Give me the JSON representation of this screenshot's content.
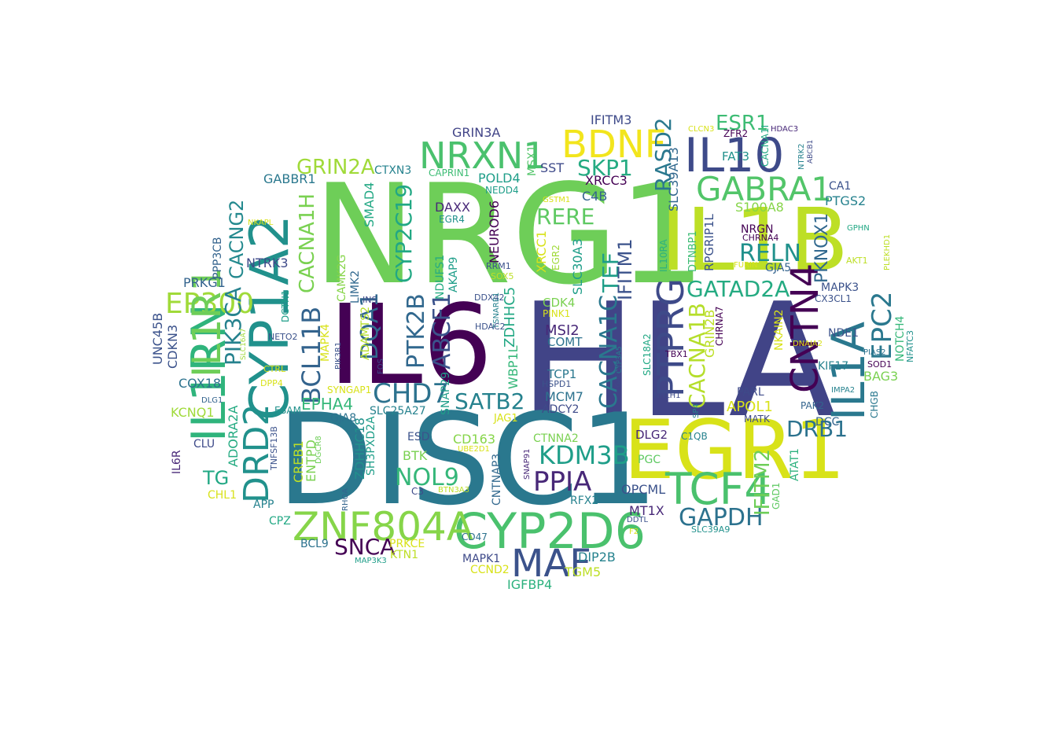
{
  "words": [
    {
      "text": "NRG1",
      "color": "#6ECE58"
    },
    {
      "text": "HLA",
      "color": "#414487"
    },
    {
      "text": "DISC1",
      "color": "#2A788E"
    },
    {
      "text": "IL6",
      "color": "#440154"
    },
    {
      "text": "IL1B",
      "color": "#BDDF26"
    },
    {
      "text": "EGR1",
      "color": "#D8E219"
    },
    {
      "text": "CYP1A2",
      "color": "#21918C"
    },
    {
      "text": "CYP2D6",
      "color": "#4AC16D"
    },
    {
      "text": "ZNF804A",
      "color": "#86D549"
    },
    {
      "text": "IL1RN",
      "color": "#2FB47C"
    },
    {
      "text": "MAF",
      "color": "#3B528B"
    },
    {
      "text": "TCF4",
      "color": "#4AC16D"
    },
    {
      "text": "IL10",
      "color": "#3E4A89"
    },
    {
      "text": "NRXN1",
      "color": "#4AC16D"
    },
    {
      "text": "BDNF",
      "color": "#F2E51D"
    },
    {
      "text": "GABRA1",
      "color": "#52C569"
    },
    {
      "text": "IL1A",
      "color": "#2A788E"
    },
    {
      "text": "CNTN4",
      "color": "#440154"
    },
    {
      "text": "PTPRG",
      "color": "#3E4A89"
    },
    {
      "text": "DRD2",
      "color": "#21918C"
    },
    {
      "text": "EP300",
      "color": "#A0DA39"
    },
    {
      "text": "CHD7",
      "color": "#2C728E"
    },
    {
      "text": "PPIA",
      "color": "#482878"
    },
    {
      "text": "KDM3B",
      "color": "#1F9E89"
    },
    {
      "text": "GAPDH",
      "color": "#2C728E"
    },
    {
      "text": "NOL9",
      "color": "#35B779"
    },
    {
      "text": "BCL11B",
      "color": "#33638D"
    },
    {
      "text": "CACNA1H",
      "color": "#7AD151"
    },
    {
      "text": "CYP2C19",
      "color": "#22A884"
    },
    {
      "text": "ABCF1",
      "color": "#3B528B"
    },
    {
      "text": "SATB2",
      "color": "#26828E"
    },
    {
      "text": "RELN",
      "color": "#21918C"
    },
    {
      "text": "GATAD2A",
      "color": "#25AB82"
    },
    {
      "text": "CACNA1C",
      "color": "#2A788E"
    },
    {
      "text": "EPC2",
      "color": "#2A788E"
    },
    {
      "text": "DQA1",
      "color": "#31688E"
    },
    {
      "text": "PTK2B",
      "color": "#31688E"
    },
    {
      "text": "TEF",
      "color": "#1F9E89"
    },
    {
      "text": "RERE",
      "color": "#5EC962"
    },
    {
      "text": "SKP1",
      "color": "#25AB82"
    },
    {
      "text": "RASD2",
      "color": "#2A788E"
    },
    {
      "text": "ESR1",
      "color": "#3DBC74"
    },
    {
      "text": "GRIN2A",
      "color": "#A0DA39"
    },
    {
      "text": "CACNG2",
      "color": "#23898E"
    },
    {
      "text": "PIK3CA",
      "color": "#26828E"
    },
    {
      "text": "IFITM2",
      "color": "#6ECE58"
    },
    {
      "text": "DRB1",
      "color": "#2C728E"
    },
    {
      "text": "SNCA",
      "color": "#440154"
    },
    {
      "text": "IGFBP4",
      "color": "#2CB17E"
    },
    {
      "text": "EPHA4",
      "color": "#35B779"
    },
    {
      "text": "TG",
      "color": "#22A884"
    },
    {
      "text": "IL1R1",
      "color": "#6ECE58"
    },
    {
      "text": "CACNA1B",
      "color": "#B5DE2B"
    },
    {
      "text": "PKNOX1",
      "color": "#31688E"
    },
    {
      "text": "IFITM3",
      "color": "#3E4A89"
    },
    {
      "text": "GRIN3A",
      "color": "#414487"
    },
    {
      "text": "POLD4",
      "color": "#1F9E89"
    },
    {
      "text": "SST",
      "color": "#3E4A89"
    },
    {
      "text": "XRCC3",
      "color": "#440154"
    },
    {
      "text": "C4B",
      "color": "#33638D"
    },
    {
      "text": "SMAD4",
      "color": "#22A884"
    },
    {
      "text": "DAXX",
      "color": "#482878"
    },
    {
      "text": "NEUROD6",
      "color": "#440154"
    },
    {
      "text": "NDUFS1",
      "color": "#25AB82"
    },
    {
      "text": "AKAP9",
      "color": "#1F9E89"
    },
    {
      "text": "CAMK2G",
      "color": "#86D549"
    },
    {
      "text": "LIMK2",
      "color": "#31688E"
    },
    {
      "text": "NTRK3",
      "color": "#3E4A89"
    },
    {
      "text": "PRKG1",
      "color": "#33638D"
    },
    {
      "text": "GABBR1",
      "color": "#2A788E"
    },
    {
      "text": "CTXN3",
      "color": "#26828E"
    },
    {
      "text": "CAPRIN1",
      "color": "#3DBC74"
    },
    {
      "text": "NEDD4",
      "color": "#1F9E89"
    },
    {
      "text": "MSX1",
      "color": "#52C569"
    },
    {
      "text": "GSTM1",
      "color": "#D8E219"
    },
    {
      "text": "EGR4",
      "color": "#21918C"
    },
    {
      "text": "XRCC1",
      "color": "#D8E219"
    },
    {
      "text": "EGR2",
      "color": "#A0DA39"
    },
    {
      "text": "SOX5",
      "color": "#BDDF26"
    },
    {
      "text": "RRM1",
      "color": "#3B528B"
    },
    {
      "text": "DDX42",
      "color": "#3B528B"
    },
    {
      "text": "CDK4",
      "color": "#7AD151"
    },
    {
      "text": "PINK1",
      "color": "#D8E219"
    },
    {
      "text": "MSI2",
      "color": "#482878"
    },
    {
      "text": "COMT",
      "color": "#2C728E"
    },
    {
      "text": "TCP1",
      "color": "#2A788E"
    },
    {
      "text": "HSPD1",
      "color": "#3B528B"
    },
    {
      "text": "MCM7",
      "color": "#2C728E"
    },
    {
      "text": "ADCY2",
      "color": "#3E4A89"
    },
    {
      "text": "IFITM1",
      "color": "#3B528B"
    },
    {
      "text": "SLC30A3",
      "color": "#1F9E89"
    },
    {
      "text": "SLC39A13",
      "color": "#31688E"
    },
    {
      "text": "ZDHHC5",
      "color": "#22A884"
    },
    {
      "text": "WBP1L",
      "color": "#35B779"
    },
    {
      "text": "TSNARE1",
      "color": "#26828E"
    },
    {
      "text": "HDAC2",
      "color": "#3B528B"
    },
    {
      "text": "SNAP29",
      "color": "#1F9E89"
    },
    {
      "text": "SLC25A27",
      "color": "#26828E"
    },
    {
      "text": "GJA8",
      "color": "#2C728E"
    },
    {
      "text": "ADAMTS2",
      "color": "#B5DE2B"
    },
    {
      "text": "SYNGAP1",
      "color": "#D8E219"
    },
    {
      "text": "MAPK4",
      "color": "#D8E219"
    },
    {
      "text": "PIK3R1",
      "color": "#3B528B"
    },
    {
      "text": "INS",
      "color": "#3E4A89"
    },
    {
      "text": "FOS",
      "color": "#3E4A89"
    },
    {
      "text": "ESAM",
      "color": "#21918C"
    },
    {
      "text": "DLG1",
      "color": "#33638D"
    },
    {
      "text": "KCNQ1",
      "color": "#A0DA39"
    },
    {
      "text": "COX18",
      "color": "#2C728E"
    },
    {
      "text": "CDKN3",
      "color": "#3B528B"
    },
    {
      "text": "UNC45B",
      "color": "#3B528B"
    },
    {
      "text": "ADORA2A",
      "color": "#25AB82"
    },
    {
      "text": "DPP4",
      "color": "#D8E219"
    },
    {
      "text": "CTRL",
      "color": "#D8E219"
    },
    {
      "text": "SLC16A7",
      "color": "#A0DA39"
    },
    {
      "text": "NETO2",
      "color": "#3B528B"
    },
    {
      "text": "DCTN1",
      "color": "#1F9E89"
    },
    {
      "text": "NKAPL",
      "color": "#D8E219"
    },
    {
      "text": "PPP3CB",
      "color": "#33638D"
    },
    {
      "text": "IL6R",
      "color": "#482878"
    },
    {
      "text": "CLU",
      "color": "#3E4A89"
    },
    {
      "text": "TNFSF13B",
      "color": "#3B528B"
    },
    {
      "text": "CREB1",
      "color": "#BDDF26"
    },
    {
      "text": "ENTPD",
      "color": "#7AD151"
    },
    {
      "text": "DGCR8",
      "color": "#6ECE58"
    },
    {
      "text": "CHL1",
      "color": "#D8E219"
    },
    {
      "text": "APP",
      "color": "#26828E"
    },
    {
      "text": "CPZ",
      "color": "#22A884"
    },
    {
      "text": "BCL9",
      "color": "#2C728E"
    },
    {
      "text": "MAP3K3",
      "color": "#1F9E89"
    },
    {
      "text": "PRKCE",
      "color": "#D8E219"
    },
    {
      "text": "KTN1",
      "color": "#BDDF26"
    },
    {
      "text": "ZDHHC18",
      "color": "#21918C"
    },
    {
      "text": "SH3PXD2A",
      "color": "#1F9E89"
    },
    {
      "text": "RHOA",
      "color": "#33638D"
    },
    {
      "text": "ESD",
      "color": "#3B528B"
    },
    {
      "text": "BTK",
      "color": "#7AD151"
    },
    {
      "text": "C3",
      "color": "#3E4A89"
    },
    {
      "text": "CD163",
      "color": "#86D549"
    },
    {
      "text": "UBE2D1",
      "color": "#D8E219"
    },
    {
      "text": "BTN3A3",
      "color": "#BDDF26"
    },
    {
      "text": "JAG1",
      "color": "#D8E219"
    },
    {
      "text": "CNTNAP3",
      "color": "#31688E"
    },
    {
      "text": "SNAP91",
      "color": "#482878"
    },
    {
      "text": "CTNNA2",
      "color": "#7AD151"
    },
    {
      "text": "RFX2",
      "color": "#26828E"
    },
    {
      "text": "CD47",
      "color": "#2C728E"
    },
    {
      "text": "MAPK1",
      "color": "#3E4A89"
    },
    {
      "text": "CCND2",
      "color": "#D8E219"
    },
    {
      "text": "DIP2B",
      "color": "#26828E"
    },
    {
      "text": "TGM5",
      "color": "#BDDF26"
    },
    {
      "text": "OPCML",
      "color": "#3B528B"
    },
    {
      "text": "MT1X",
      "color": "#482878"
    },
    {
      "text": "DDTL",
      "color": "#3B528B"
    },
    {
      "text": "F2",
      "color": "#D8E219"
    },
    {
      "text": "SLC39A9",
      "color": "#21918C"
    },
    {
      "text": "DLG2",
      "color": "#482878"
    },
    {
      "text": "C1QB",
      "color": "#26828E"
    },
    {
      "text": "PGC",
      "color": "#5EC962"
    },
    {
      "text": "SLC18A2",
      "color": "#22A884"
    },
    {
      "text": "CYP3A5",
      "color": "#26828E"
    },
    {
      "text": "GABRB3",
      "color": "#3E4A89"
    },
    {
      "text": "TBX1",
      "color": "#440154"
    },
    {
      "text": "NHLH1",
      "color": "#3E4A89"
    },
    {
      "text": "SP4",
      "color": "#26828E"
    },
    {
      "text": "GRIN2B",
      "color": "#BDDF26"
    },
    {
      "text": "CHRNA7",
      "color": "#440154"
    },
    {
      "text": "APOL1",
      "color": "#D8E219"
    },
    {
      "text": "PARL",
      "color": "#3E4A89"
    },
    {
      "text": "MATK",
      "color": "#3E4A89"
    },
    {
      "text": "PAK2",
      "color": "#33638D"
    },
    {
      "text": "DCC",
      "color": "#33638D"
    },
    {
      "text": "ATAT1",
      "color": "#2CB17E"
    },
    {
      "text": "GAD1",
      "color": "#5EC962"
    },
    {
      "text": "NKAIN2",
      "color": "#D8E219"
    },
    {
      "text": "DNAJA2",
      "color": "#D8E219"
    },
    {
      "text": "NDE1",
      "color": "#3B528B"
    },
    {
      "text": "KIF17",
      "color": "#26828E"
    },
    {
      "text": "IMPA2",
      "color": "#26828E"
    },
    {
      "text": "BAG3",
      "color": "#7AD151"
    },
    {
      "text": "CHGB",
      "color": "#2A788E"
    },
    {
      "text": "SOD1",
      "color": "#440154"
    },
    {
      "text": "PIAS2",
      "color": "#2C728E"
    },
    {
      "text": "NOTCH4",
      "color": "#35B779"
    },
    {
      "text": "NFATC3",
      "color": "#21918C"
    },
    {
      "text": "CX3CL1",
      "color": "#3B528B"
    },
    {
      "text": "MAPK3",
      "color": "#3B528B"
    },
    {
      "text": "GJA5",
      "color": "#33638D"
    },
    {
      "text": "NRGN",
      "color": "#440154"
    },
    {
      "text": "CHRNA4",
      "color": "#440154"
    },
    {
      "text": "FURIN",
      "color": "#D8E219"
    },
    {
      "text": "DTNBP1",
      "color": "#3DBC74"
    },
    {
      "text": "IL10RA",
      "color": "#2CB17E"
    },
    {
      "text": "RPGRIP1L",
      "color": "#3B528B"
    },
    {
      "text": "S100A8",
      "color": "#86D549"
    },
    {
      "text": "FAT3",
      "color": "#21918C"
    },
    {
      "text": "CLCN3",
      "color": "#D8E219"
    },
    {
      "text": "ZFR2",
      "color": "#440154"
    },
    {
      "text": "CACNA1I",
      "color": "#22A884"
    },
    {
      "text": "HDAC3",
      "color": "#482878"
    },
    {
      "text": "NTRK2",
      "color": "#26828E"
    },
    {
      "text": "ABCB1",
      "color": "#3E4A89"
    },
    {
      "text": "CA1",
      "color": "#3B528B"
    },
    {
      "text": "PTGS2",
      "color": "#26828E"
    },
    {
      "text": "GPHN",
      "color": "#22A884"
    },
    {
      "text": "AKT1",
      "color": "#BDDF26"
    },
    {
      "text": "PLEKHD1",
      "color": "#BDDF26"
    }
  ]
}
